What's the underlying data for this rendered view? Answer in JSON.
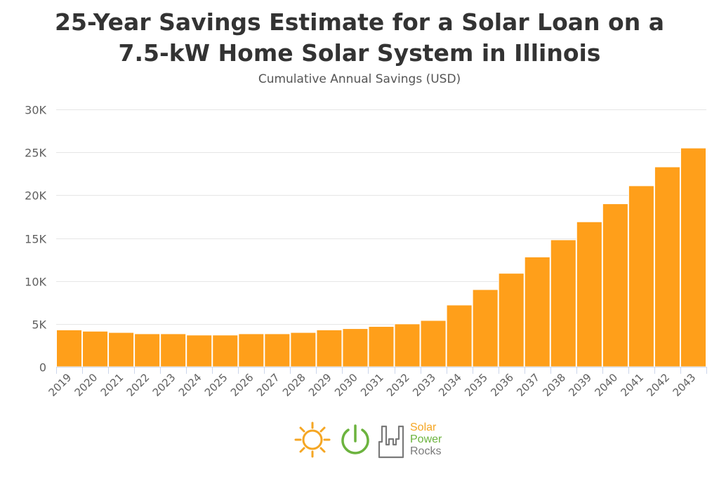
{
  "title_line1": "25-Year Savings Estimate for a Solar Loan on a",
  "title_line2": "7.5-kW Home Solar System in Illinois",
  "subtitle": "Cumulative Annual Savings (USD)",
  "brand": {
    "line1": "Solar",
    "line2": "Power",
    "line3": "Rocks"
  },
  "colors": {
    "bar": "#ff9f1a",
    "grid": "#e6e6e6",
    "axis": "#ccd6eb",
    "logo_orange": "#f5a623",
    "logo_green": "#6cb33e",
    "logo_gray": "#7a7a7a"
  },
  "chart_data": {
    "type": "bar",
    "title": "25-Year Savings Estimate for a Solar Loan on a 7.5-kW Home Solar System in Illinois",
    "subtitle": "Cumulative Annual Savings (USD)",
    "categories": [
      "2019",
      "2020",
      "2021",
      "2022",
      "2023",
      "2024",
      "2025",
      "2026",
      "2027",
      "2028",
      "2029",
      "2030",
      "2031",
      "2032",
      "2033",
      "2034",
      "2035",
      "2036",
      "2037",
      "2038",
      "2039",
      "2040",
      "2041",
      "2042",
      "2043"
    ],
    "values": [
      4300,
      4150,
      4000,
      3850,
      3850,
      3700,
      3700,
      3850,
      3850,
      4000,
      4300,
      4450,
      4700,
      5000,
      5400,
      7200,
      9000,
      10900,
      12800,
      14800,
      16900,
      19000,
      21100,
      23300,
      25500
    ],
    "ylim": [
      0,
      30000
    ],
    "yticks": [
      0,
      5000,
      10000,
      15000,
      20000,
      25000,
      30000
    ],
    "ytick_labels": [
      "0",
      "5K",
      "10K",
      "15K",
      "20K",
      "25K",
      "30K"
    ],
    "grid": true,
    "legend": "none"
  }
}
